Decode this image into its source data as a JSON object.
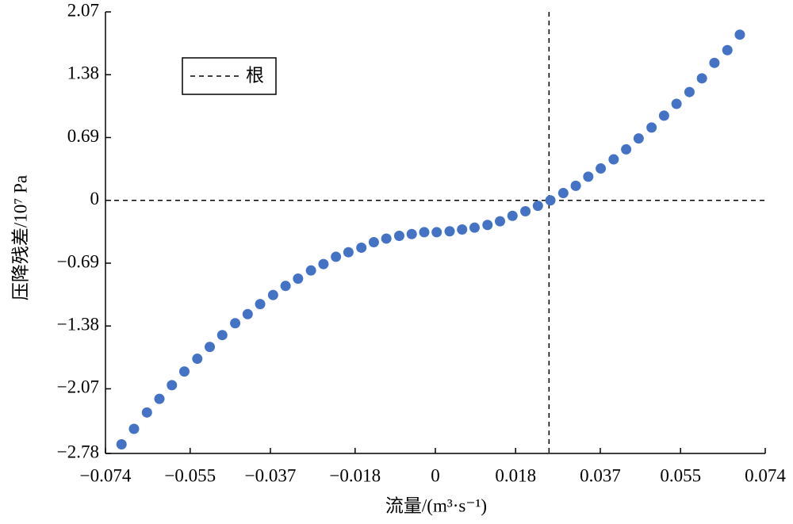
{
  "chart_data": {
    "type": "scatter",
    "xlabel": "流量/(m³·s⁻¹)",
    "ylabel": "压降残差/10⁷ Pa",
    "color": "#4472c4",
    "x": [
      -0.0704,
      -0.0676,
      -0.0647,
      -0.0619,
      -0.0591,
      -0.0563,
      -0.0534,
      -0.0506,
      -0.0478,
      -0.0449,
      -0.0421,
      -0.0393,
      -0.0364,
      -0.0336,
      -0.0308,
      -0.0279,
      -0.0251,
      -0.0223,
      -0.0195,
      -0.0166,
      -0.0138,
      -0.011,
      -0.0081,
      -0.0053,
      -0.0025,
      0.0003,
      0.0032,
      0.006,
      0.0088,
      0.0117,
      0.0145,
      0.0173,
      0.0202,
      0.023,
      0.0258,
      0.0287,
      0.0315,
      0.0343,
      0.0371,
      0.04,
      0.0428,
      0.0456,
      0.0485,
      0.0513,
      0.0541,
      0.057,
      0.0598,
      0.0626,
      0.0655,
      0.0683
    ],
    "values": [
      -2.68,
      -2.51,
      -2.33,
      -2.18,
      -2.03,
      -1.88,
      -1.74,
      -1.61,
      -1.48,
      -1.35,
      -1.25,
      -1.14,
      -1.04,
      -0.94,
      -0.86,
      -0.77,
      -0.7,
      -0.62,
      -0.57,
      -0.52,
      -0.46,
      -0.42,
      -0.39,
      -0.37,
      -0.35,
      -0.35,
      -0.34,
      -0.32,
      -0.3,
      -0.27,
      -0.23,
      -0.17,
      -0.12,
      -0.06,
      0,
      0.08,
      0.16,
      0.26,
      0.35,
      0.45,
      0.56,
      0.68,
      0.8,
      0.93,
      1.06,
      1.19,
      1.34,
      1.51,
      1.65,
      1.82
    ],
    "reference_lines": {
      "name": "根",
      "x": 0.0255,
      "y": 0
    },
    "legend": "upper left",
    "xlim": [
      -0.074,
      0.074
    ],
    "xticks": [
      {
        "value": -0.074,
        "label": "−0.074"
      },
      {
        "value": -0.055,
        "label": "−0.055"
      },
      {
        "value": -0.037,
        "label": "−0.037"
      },
      {
        "value": -0.018,
        "label": "−0.018"
      },
      0,
      0.018,
      0.037,
      0.055,
      0.074
    ],
    "ylim": [
      -2.78,
      2.07
    ],
    "yticks": [
      {
        "value": -2.78,
        "label": "−2.78"
      },
      {
        "value": -2.07,
        "label": "−2.07"
      },
      {
        "value": -1.38,
        "label": "−1.38"
      },
      {
        "value": -0.69,
        "label": "−0.69"
      },
      0,
      0.69,
      1.38,
      2.07
    ]
  }
}
